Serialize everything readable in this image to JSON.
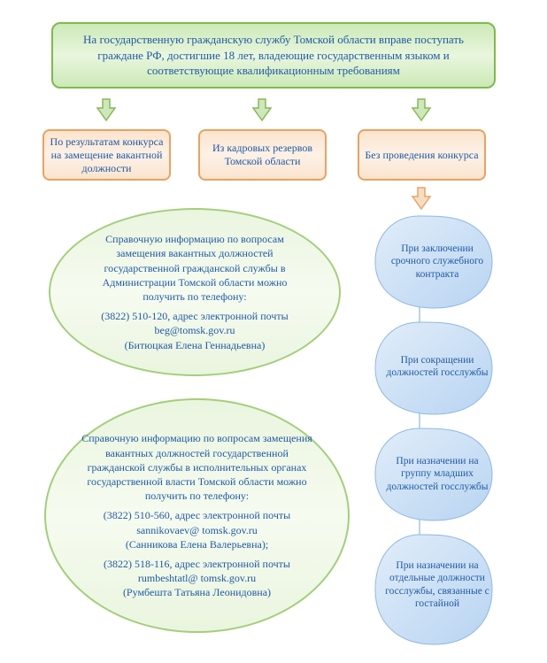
{
  "type": "flowchart",
  "colors": {
    "page_bg": "#ffffff",
    "text": "#1f5aa6",
    "green_border": "#7fba4c",
    "green_fill_top": "#cce9b7",
    "green_fill_mid": "#e9f6de",
    "green_light_border": "#a3cf7a",
    "green_light_fill_top": "#eaf5df",
    "green_light_fill_mid": "#f6fbf0",
    "orange_border": "#e8a360",
    "orange_fill_top": "#fbe4cf",
    "orange_fill_mid": "#fdf1e6",
    "blue_fill_light": "#e1edf9",
    "blue_fill_dark": "#b8d4f2",
    "blue_stroke": "#8fb8e3",
    "arrow_green_fill": "#cfe7bb",
    "arrow_green_stroke": "#85ba58",
    "arrow_orange_fill": "#f9ddc3",
    "arrow_orange_stroke": "#e6a564"
  },
  "typography": {
    "family": "Times New Roman",
    "header_fontsize": 13,
    "branch_fontsize": 12,
    "ellipse_fontsize": 12,
    "droplet_fontsize": 11.5
  },
  "header": {
    "text": "На государственную гражданскую службу Томской области вправе поступать граждане РФ, достигшие 18 лет, владеющие государственным языком и соответствующие квалификационным требованиям"
  },
  "branches": [
    {
      "label": "По результатам конкурса на замещение вакантной должности"
    },
    {
      "label": "Из кадровых резервов Томской области"
    },
    {
      "label": "Без проведения конкурса"
    }
  ],
  "info_ellipses": [
    {
      "lines": [
        "Справочную информацию по вопросам замещения вакантных должностей государственной гражданской службы в Администрации Томской области можно получить по телефону:",
        "",
        "(3822) 510-120, адрес электронной почты beg@tomsk.gov.ru",
        "(Битюцкая Елена Геннадьевна)"
      ]
    },
    {
      "lines": [
        "Справочную информацию по вопросам замещения вакантных должностей государственной гражданской службы в исполнительных органах государственной власти Томской области можно получить по телефону:",
        "",
        "(3822) 510-560, адрес электронной почты sannikovaev@ tomsk.gov.ru",
        "(Санникова Елена Валерьевна);",
        "",
        "(3822) 518-116, адрес электронной почты rumbeshtatl@ tomsk.gov.ru",
        "(Румбешта Татьяна Леонидовна)"
      ]
    }
  ],
  "cases": [
    {
      "label": "При заключении срочного служебного контракта"
    },
    {
      "label": "При сокращении должностей госслужбы"
    },
    {
      "label": "При назначении на группу младших должностей госслужбы"
    },
    {
      "label": "При назначении на отдельные должности госслужбы, связанные с гостайной"
    }
  ]
}
